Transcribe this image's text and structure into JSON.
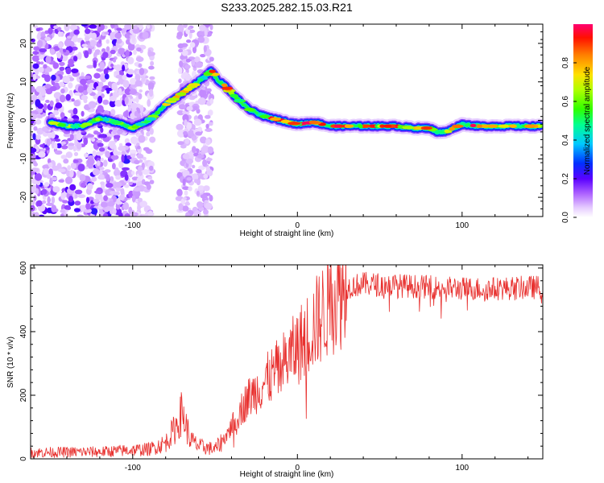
{
  "title": "S233.2025.282.15.03.R21",
  "chart_data": [
    {
      "type": "heatmap",
      "xlabel": "Height of straight line (km)",
      "ylabel": "Frequency (Hz)",
      "xlim": [
        -162,
        149
      ],
      "ylim": [
        -25,
        25
      ],
      "xticks": [
        -100,
        0,
        100
      ],
      "yticks": [
        -20,
        -10,
        0,
        10,
        20
      ],
      "colorbar": {
        "label": "Normalized spectral amplitude",
        "range": [
          0,
          1
        ],
        "ticks": [
          0.0,
          0.2,
          0.4,
          0.6,
          0.8
        ]
      },
      "ridge": {
        "x": [
          -150,
          -140,
          -130,
          -120,
          -110,
          -100,
          -90,
          -80,
          -70,
          -60,
          -52,
          -48,
          -45,
          -40,
          -35,
          -30,
          -20,
          -10,
          0,
          10,
          20,
          30,
          40,
          50,
          60,
          70,
          80,
          85,
          90,
          95,
          100,
          110,
          120,
          130,
          140,
          148
        ],
        "y": [
          -0.5,
          -1.5,
          -1.5,
          0.5,
          -0.5,
          -2,
          0,
          4,
          7,
          10,
          13,
          10,
          9.5,
          7,
          5,
          3,
          1,
          0,
          -1,
          -0.5,
          -1.5,
          -1.5,
          -1.5,
          -1.5,
          -1.5,
          -2,
          -2,
          -3,
          -3,
          -2,
          -1,
          -1.5,
          -1.5,
          -1.5,
          -1.5,
          -1.5
        ]
      }
    },
    {
      "type": "line",
      "xlabel": "Height of straight line (km)",
      "ylabel": "SNR (10 * v/v)",
      "xlim": [
        -162,
        149
      ],
      "ylim": [
        0,
        610
      ],
      "xticks": [
        -100,
        0,
        100
      ],
      "yticks": [
        0,
        200,
        400,
        600
      ],
      "color": "#e8312f",
      "trend": {
        "x": [
          -162,
          -120,
          -90,
          -80,
          -75,
          -72,
          -70,
          -68,
          -65,
          -60,
          -50,
          -45,
          -40,
          -35,
          -30,
          -20,
          -10,
          0,
          10,
          20,
          30,
          40,
          60,
          80,
          100,
          120,
          149
        ],
        "y": [
          20,
          22,
          30,
          50,
          90,
          120,
          150,
          110,
          60,
          40,
          30,
          60,
          100,
          150,
          190,
          240,
          290,
          350,
          420,
          490,
          540,
          550,
          545,
          540,
          535,
          535,
          540
        ]
      }
    }
  ]
}
